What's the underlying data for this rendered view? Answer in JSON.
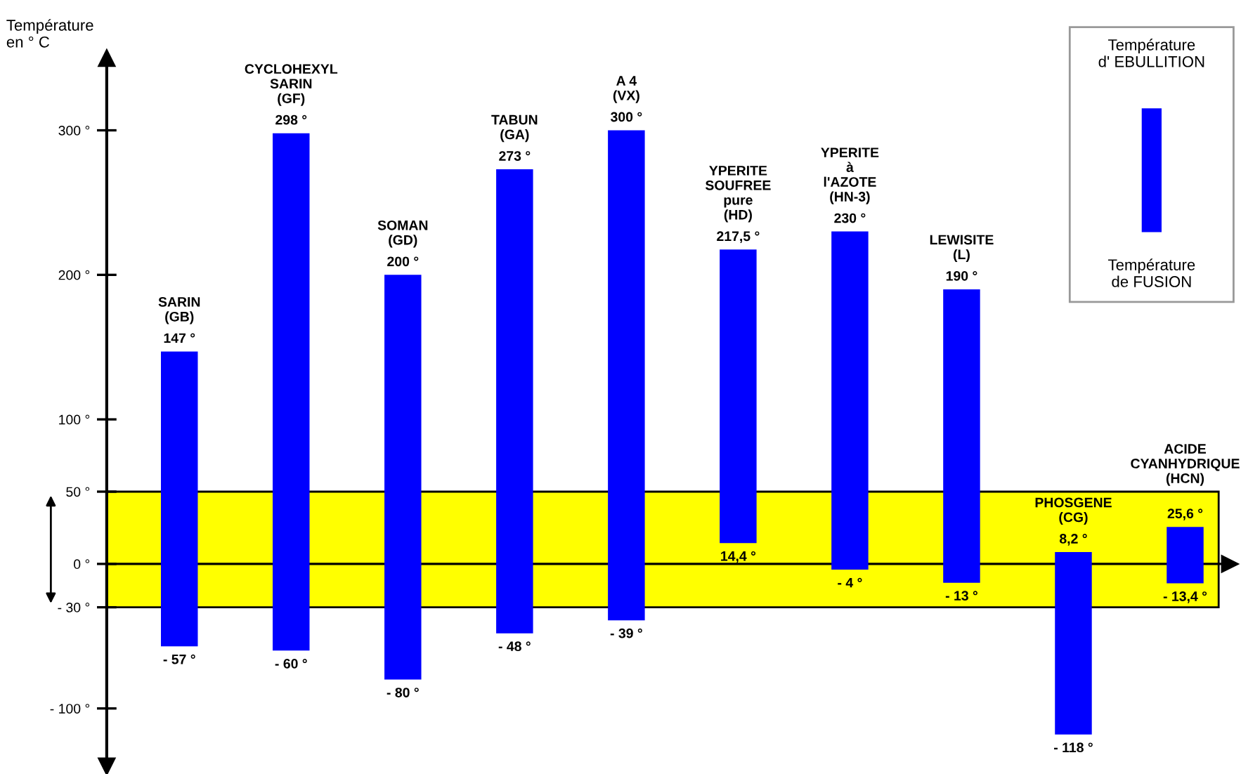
{
  "chart_data": {
    "type": "bar",
    "ylabel": "Température\nen ° C",
    "categories": [
      "SARIN\n(GB)",
      "CYCLOHEXYL\nSARIN\n(GF)",
      "SOMAN\n(GD)",
      "TABUN\n(GA)",
      "A 4\n(VX)",
      "YPERITE\nSOUFREE\npure\n(HD)",
      "YPERITE\nà\nl'AZOTE\n(HN-3)",
      "LEWISITE\n(L)",
      "PHOSGENE\n(CG)",
      "ACIDE\nCYANHYDRIQUE\n(HCN)"
    ],
    "series": [
      {
        "color": "#0000ff",
        "values": [
          204,
          358,
          280,
          321,
          339,
          203.1,
          234,
          203,
          126.2,
          39.0
        ],
        "base": [
          -57,
          -60,
          -80,
          -48,
          -39,
          14.4,
          -4,
          -13,
          -118,
          -13.4
        ]
      }
    ],
    "annotations": [
      {
        "text": "147 °",
        "x": "SARIN\n(GB)",
        "y": 147
      },
      {
        "text": "- 57 °",
        "x": "SARIN\n(GB)",
        "y": -57
      },
      {
        "text": "298 °",
        "x": "CYCLOHEXYL\nSARIN\n(GF)",
        "y": 298
      },
      {
        "text": "- 60 °",
        "x": "CYCLOHEXYL\nSARIN\n(GF)",
        "y": -60
      },
      {
        "text": "200 °",
        "x": "SOMAN\n(GD)",
        "y": 200
      },
      {
        "text": "- 80 °",
        "x": "SOMAN\n(GD)",
        "y": -80
      },
      {
        "text": "273 °",
        "x": "TABUN\n(GA)",
        "y": 273
      },
      {
        "text": "- 48 °",
        "x": "TABUN\n(GA)",
        "y": -48
      },
      {
        "text": "300 °",
        "x": "A 4\n(VX)",
        "y": 300
      },
      {
        "text": "- 39 °",
        "x": "A 4\n(VX)",
        "y": -39
      },
      {
        "text": "217,5 °",
        "x": "YPERITE\nSOUFREE\npure\n(HD)",
        "y": 217.5
      },
      {
        "text": "14,4 °",
        "x": "YPERITE\nSOUFREE\npure\n(HD)",
        "y": 14.4
      },
      {
        "text": "230 °",
        "x": "YPERITE\nà\nl'AZOTE\n(HN-3)",
        "y": 230
      },
      {
        "text": "- 4 °",
        "x": "YPERITE\nà\nl'AZOTE\n(HN-3)",
        "y": -4
      },
      {
        "text": "190 °",
        "x": "LEWISITE\n(L)",
        "y": 190
      },
      {
        "text": "- 13 °",
        "x": "LEWISITE\n(L)",
        "y": -13
      },
      {
        "text": "8,2 °",
        "x": "PHOSGENE\n(CG)",
        "y": 8.2
      },
      {
        "text": "- 118 °",
        "x": "PHOSGENE\n(CG)",
        "y": -118
      },
      {
        "text": "25,6 °",
        "x": "ACIDE\nCYANHYDRIQUE\n(HCN)",
        "y": 25.6
      },
      {
        "text": "- 13,4 °",
        "x": "ACIDE\nCYANHYDRIQUE\n(HCN)",
        "y": -13.4
      },
      "Température\nd' EBULLITION",
      "Température\nde FUSION"
    ],
    "ylim": [
      -140,
      350
    ],
    "yticks": [
      {
        "value": 300,
        "label": "300 °"
      },
      {
        "value": 200,
        "label": "200 °"
      },
      {
        "value": 100,
        "label": "100 °"
      },
      {
        "value": 50,
        "label": "50 °"
      },
      {
        "value": 0,
        "label": "0 °"
      },
      {
        "value": -30,
        "label": "- 30 °"
      },
      {
        "value": -100,
        "label": "- 100 °"
      }
    ],
    "bands": [
      {
        "axis": "y",
        "from": -30,
        "to": 50,
        "color": "#ffff00"
      }
    ],
    "ref_lines": [
      {
        "axis": "y",
        "value": 0,
        "color": "#000000"
      }
    ],
    "grid": false
  }
}
